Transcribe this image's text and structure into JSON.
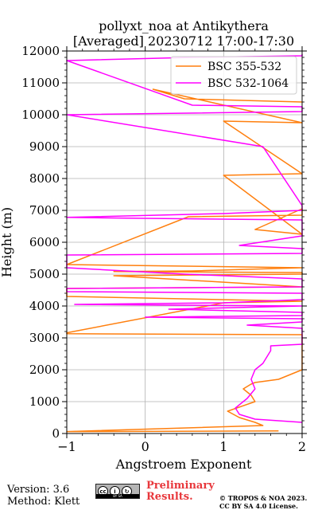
{
  "chart_data": {
    "type": "line",
    "title_line1": "pollyxt_noa at Antikythera",
    "title_line2": "[Averaged] 20230712 17:00-17:30",
    "xlabel": "Angstroem Exponent",
    "ylabel": "Height (m)",
    "xlim": [
      -1,
      2
    ],
    "ylim": [
      0,
      12000
    ],
    "xticks": [
      -1,
      0,
      1,
      2
    ],
    "yticks": [
      0,
      1000,
      2000,
      3000,
      4000,
      5000,
      6000,
      7000,
      8000,
      9000,
      10000,
      11000,
      12000
    ],
    "grid": true,
    "legend_position": "top-right",
    "series": [
      {
        "name": "BSC 355-532",
        "color": "#ff7f0e",
        "x": [
          1.7,
          -1.0,
          1.5,
          1.4,
          1.2,
          1.05,
          1.4,
          1.35,
          1.25,
          1.35,
          1.4,
          1.7,
          2.0,
          2.0,
          2.0,
          2.0,
          -1.0,
          -1.0,
          1.0,
          2.0,
          -1.0,
          -1.0,
          2.0,
          -0.4,
          2.0,
          2.0,
          -0.4,
          0.6,
          2.0,
          -1.0,
          0.55,
          2.0,
          2.0,
          2.0,
          1.4,
          2.0,
          1.0,
          2.0,
          1.0,
          2.0,
          0.1,
          0.5,
          2.0,
          2.0
        ],
        "y": [
          80,
          60,
          250,
          350,
          500,
          700,
          1000,
          1200,
          1400,
          1550,
          1600,
          1700,
          2000,
          2800,
          3000,
          3100,
          3130,
          3160,
          4100,
          4150,
          4300,
          4550,
          4600,
          4950,
          5000,
          5050,
          5080,
          5100,
          5200,
          5300,
          6800,
          6850,
          7000,
          7050,
          6400,
          6250,
          8100,
          8150,
          9800,
          9750,
          10800,
          10500,
          10400,
          10380
        ]
      },
      {
        "name": "BSC 532-1064",
        "color": "#ff00ff",
        "x": [
          2.0,
          1.4,
          1.2,
          1.15,
          1.3,
          1.4,
          1.35,
          1.4,
          1.5,
          1.6,
          1.6,
          2.0,
          2.0,
          1.3,
          2.0,
          2.0,
          0.0,
          2.0,
          2.0,
          0.3,
          2.0,
          -0.9,
          1.0,
          2.0,
          2.0,
          -1.0,
          -1.0,
          2.0,
          2.0,
          0.5,
          -1.0,
          -1.0,
          2.0,
          2.0,
          1.2,
          2.0,
          2.0,
          0.0,
          -1.0,
          1.0,
          2.0,
          2.0,
          1.5,
          -1.0,
          2.0,
          2.0,
          0.6,
          -1.0,
          0.6,
          2.0,
          2.0
        ],
        "y": [
          350,
          450,
          600,
          800,
          1100,
          1400,
          1700,
          2000,
          2200,
          2600,
          2750,
          2800,
          3300,
          3400,
          3500,
          3600,
          3650,
          3700,
          3800,
          3900,
          4000,
          4050,
          4100,
          4200,
          4400,
          4450,
          4550,
          4600,
          4850,
          5000,
          5200,
          5600,
          5650,
          5800,
          5900,
          6200,
          6700,
          6750,
          6780,
          6900,
          7000,
          7150,
          9000,
          10000,
          10100,
          10250,
          10300,
          11700,
          11800,
          11850,
          11900
        ]
      }
    ],
    "footer": {
      "version": "Version: 3.6",
      "method": "Method: Klett",
      "preliminary_line1": "Preliminary",
      "preliminary_line2": "Results.",
      "copyright_line1": "© TROPOS & NOA 2023.",
      "copyright_line2": "CC BY SA 4.0 License."
    }
  }
}
